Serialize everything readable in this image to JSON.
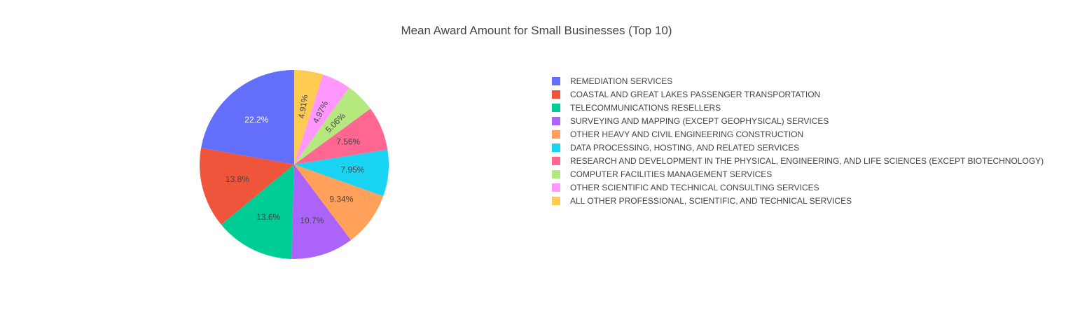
{
  "chart_data": {
    "type": "pie",
    "title": "Mean Award Amount for Small Businesses (Top 10)",
    "labels": [
      "REMEDIATION SERVICES",
      "COASTAL AND GREAT LAKES PASSENGER TRANSPORTATION",
      "TELECOMMUNICATIONS RESELLERS",
      "SURVEYING AND MAPPING (EXCEPT GEOPHYSICAL) SERVICES",
      "OTHER HEAVY AND CIVIL ENGINEERING CONSTRUCTION",
      "DATA PROCESSING, HOSTING, AND RELATED SERVICES",
      "RESEARCH AND DEVELOPMENT IN THE PHYSICAL, ENGINEERING, AND LIFE SCIENCES (EXCEPT BIOTECHNOLOGY)",
      "COMPUTER FACILITIES MANAGEMENT SERVICES",
      "OTHER SCIENTIFIC AND TECHNICAL CONSULTING SERVICES",
      "ALL OTHER PROFESSIONAL, SCIENTIFIC, AND TECHNICAL SERVICES"
    ],
    "values": [
      22.2,
      13.8,
      13.6,
      10.7,
      9.34,
      7.95,
      7.56,
      5.06,
      4.97,
      4.91
    ],
    "value_labels": [
      "22.2%",
      "13.8%",
      "13.6%",
      "10.7%",
      "9.34%",
      "7.95%",
      "7.56%",
      "5.06%",
      "4.97%",
      "4.91%"
    ],
    "colors": [
      "#636efa",
      "#EF553B",
      "#00cc96",
      "#ab63fa",
      "#FFA15A",
      "#19d3f3",
      "#FF6692",
      "#B6E880",
      "#FF97FF",
      "#FECB52"
    ],
    "label_colors": [
      "#ffffff",
      "#444444",
      "#444444",
      "#444444",
      "#444444",
      "#444444",
      "#444444",
      "#444444",
      "#444444",
      "#444444"
    ],
    "direction": "counterclockwise",
    "start": "top",
    "legend_position": "right"
  }
}
